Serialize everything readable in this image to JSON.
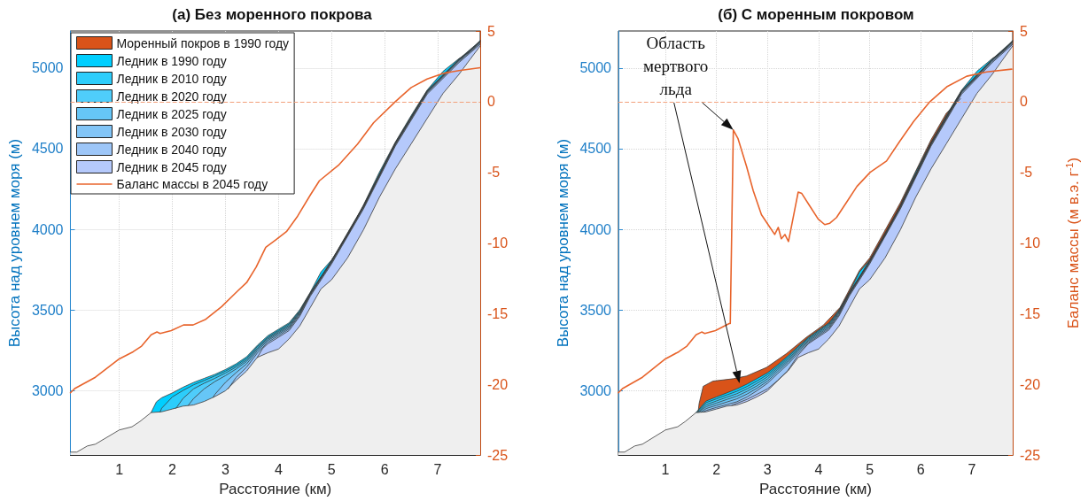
{
  "chart_data": [
    {
      "type": "area",
      "title": "(а) Без моренного покрова",
      "xlabel": "Расстояние (км)",
      "ylabel": "Высота над уровнем моря (м)",
      "xlim": [
        0.08,
        7.8
      ],
      "xticks": [
        1,
        2,
        3,
        4,
        5,
        6,
        7
      ],
      "ylim": [
        2600,
        5230
      ],
      "yticks": [
        3000,
        3500,
        4000,
        4500,
        5000
      ],
      "y2lim": [
        -25,
        5
      ],
      "y2ticks": [
        -25,
        -20,
        -15,
        -10,
        -5,
        0,
        5
      ],
      "grid": true,
      "legend": "top left",
      "ref_lines": [
        {
          "axis": "y2",
          "value": 0,
          "color": "#f2a07b",
          "line_style": "dashed"
        }
      ],
      "series": [
        {
          "name": "Моренный покров в 1990 году",
          "color": "#d95319"
        },
        {
          "name": "Ледник в 1990 году",
          "color": "#00cfff",
          "x": [
            1.6,
            1.7,
            1.8,
            2.0,
            2.2,
            2.4,
            2.6,
            2.8,
            3.0,
            3.2,
            3.4,
            3.6,
            3.8,
            4.0,
            4.2,
            4.4,
            4.6,
            4.8,
            5.0,
            5.3,
            5.6,
            5.9,
            6.2,
            6.5,
            6.8,
            7.1,
            7.4,
            7.6,
            7.8
          ],
          "values": [
            2863,
            2930,
            2955,
            2985,
            3020,
            3050,
            3075,
            3100,
            3130,
            3165,
            3209,
            3280,
            3340,
            3380,
            3420,
            3500,
            3610,
            3735,
            3810,
            3960,
            4150,
            4354,
            4540,
            4706,
            4863,
            4980,
            5059,
            5100,
            5172
          ]
        },
        {
          "name": "Ледник в 2010 году",
          "color": "#2dcdfb",
          "x": [
            1.77,
            1.8,
            2.0,
            2.2,
            2.4,
            2.6,
            2.8,
            3.0,
            3.2,
            3.4,
            3.6,
            3.8,
            4.0,
            4.2,
            4.4,
            4.6,
            5.0,
            5.6,
            6.2,
            6.8,
            7.4,
            7.8
          ],
          "values": [
            2867,
            2890,
            2960,
            3000,
            3035,
            3062,
            3090,
            3120,
            3155,
            3200,
            3272,
            3332,
            3372,
            3413,
            3494,
            3607,
            3807,
            4147,
            4537,
            4860,
            5056,
            5169
          ]
        },
        {
          "name": "Ледник в 2020 году",
          "color": "#4fcdfb",
          "x": [
            2.07,
            2.2,
            2.4,
            2.6,
            2.8,
            3.0,
            3.2,
            3.4,
            3.6,
            3.8,
            4.0,
            4.2,
            4.4,
            4.6,
            5.0,
            5.6,
            6.2,
            6.8,
            7.4,
            7.8
          ],
          "values": [
            2890,
            2950,
            3010,
            3045,
            3075,
            3108,
            3145,
            3190,
            3263,
            3325,
            3365,
            3405,
            3488,
            3604,
            3804,
            4144,
            4534,
            4857,
            5053,
            5166
          ]
        },
        {
          "name": "Ледник в 2025 году",
          "color": "#66c6f7",
          "x": [
            2.3,
            2.4,
            2.6,
            2.8,
            3.0,
            3.2,
            3.4,
            3.6,
            3.8,
            4.0,
            4.2,
            4.4,
            4.6,
            5.0,
            5.6,
            6.2,
            6.8,
            7.4,
            7.8
          ],
          "values": [
            2908,
            2950,
            3010,
            3055,
            3092,
            3133,
            3180,
            3255,
            3318,
            3358,
            3398,
            3482,
            3601,
            3801,
            4141,
            4531,
            4854,
            5050,
            5163
          ]
        },
        {
          "name": "Ледник в 2030 году",
          "color": "#82c5f7",
          "x": [
            2.77,
            2.8,
            3.0,
            3.2,
            3.4,
            3.6,
            3.8,
            4.0,
            4.2,
            4.4,
            4.6,
            5.0,
            5.6,
            6.2,
            6.8,
            7.4,
            7.8
          ],
          "values": [
            2958,
            2975,
            3050,
            3110,
            3165,
            3245,
            3310,
            3350,
            3390,
            3476,
            3598,
            3798,
            4138,
            4528,
            4851,
            5047,
            5160
          ]
        },
        {
          "name": "Ледник в 2040 году",
          "color": "#9dc6f8",
          "x": [
            3.05,
            3.2,
            3.4,
            3.6,
            3.8,
            4.0,
            4.2,
            4.4,
            4.6,
            5.0,
            5.6,
            6.2,
            6.8,
            7.4,
            7.8
          ],
          "values": [
            3010,
            3080,
            3145,
            3232,
            3300,
            3340,
            3382,
            3468,
            3592,
            3792,
            4132,
            4522,
            4845,
            5041,
            5154
          ]
        },
        {
          "name": "Ледник в 2045 году",
          "color": "#b5c9fb",
          "x": [
            3.6,
            3.7,
            3.8,
            4.0,
            4.2,
            4.4,
            4.6,
            5.0,
            5.6,
            6.2,
            6.8,
            7.4,
            7.8
          ],
          "values": [
            3205,
            3260,
            3290,
            3330,
            3372,
            3460,
            3585,
            3785,
            4125,
            4515,
            4838,
            5034,
            5147
          ]
        },
        {
          "color": "#efefef",
          "x": [
            0.08,
            0.2,
            0.4,
            0.55,
            1.0,
            1.24,
            1.39,
            1.6,
            1.8,
            2.0,
            2.2,
            2.4,
            2.6,
            2.8,
            3.0,
            3.2,
            3.4,
            3.6,
            3.8,
            4.0,
            4.2,
            4.4,
            4.6,
            4.8,
            5.0,
            5.3,
            5.6,
            5.9,
            6.2,
            6.5,
            6.8,
            7.1,
            7.4,
            7.6,
            7.8
          ],
          "values": [
            2618,
            2618,
            2656,
            2667,
            2755,
            2775,
            2808,
            2863,
            2868,
            2885,
            2903,
            2910,
            2932,
            2962,
            2998,
            3062,
            3121,
            3205,
            3234,
            3257,
            3320,
            3400,
            3515,
            3630,
            3687,
            3822,
            3996,
            4198,
            4374,
            4530,
            4687,
            4843,
            4961,
            5050,
            5137
          ]
        },
        {
          "name": "Баланс массы в 2045 году",
          "type": "line",
          "axis": "y2",
          "color": "#e8642c",
          "x": [
            0.08,
            0.16,
            0.55,
            1.0,
            1.26,
            1.42,
            1.6,
            1.71,
            1.77,
            1.98,
            2.21,
            2.39,
            2.63,
            2.93,
            3.23,
            3.4,
            3.58,
            3.76,
            3.94,
            4.15,
            4.36,
            4.6,
            4.77,
            5.13,
            5.49,
            5.79,
            6.2,
            6.5,
            6.8,
            7.1,
            7.4,
            7.8
          ],
          "values": [
            -20.6,
            -20.3,
            -19.5,
            -18.2,
            -17.7,
            -17.3,
            -16.5,
            -16.3,
            -16.4,
            -16.2,
            -15.8,
            -15.8,
            -15.4,
            -14.5,
            -13.4,
            -12.8,
            -11.7,
            -10.3,
            -9.8,
            -9.2,
            -8.1,
            -6.6,
            -5.6,
            -4.5,
            -3.0,
            -1.5,
            0.0,
            1.0,
            1.6,
            2.0,
            2.2,
            2.4
          ]
        }
      ]
    },
    {
      "type": "area",
      "title": "(б) С моренным покровом",
      "xlabel": "Расстояние (км)",
      "ylabel": "Высота над уровнем моря (м)",
      "y2label": "Баланс массы (м в.э. г$^{-1}$)",
      "xlim": [
        0.08,
        7.8
      ],
      "xticks": [
        1,
        2,
        3,
        4,
        5,
        6,
        7
      ],
      "ylim": [
        2600,
        5230
      ],
      "yticks": [
        3000,
        3500,
        4000,
        4500,
        5000
      ],
      "y2lim": [
        -25,
        5
      ],
      "y2ticks": [
        -25,
        -20,
        -15,
        -10,
        -5,
        0,
        5
      ],
      "grid": true,
      "annotations": [
        "Область мертвого льда"
      ],
      "ref_lines": [
        {
          "axis": "y2",
          "value": 0,
          "color": "#f2a07b",
          "line_style": "dashed"
        }
      ],
      "series": [
        {
          "color": "#d95319",
          "x": [
            1.64,
            1.66,
            1.74,
            1.93,
            2.33,
            2.59,
            2.98,
            3.37,
            3.76,
            4.09,
            4.42,
            4.8,
            5.0,
            5.6,
            6.2,
            6.5,
            6.78
          ],
          "values": [
            2866,
            2919,
            3026,
            3058,
            3073,
            3090,
            3143,
            3229,
            3330,
            3405,
            3515,
            3745,
            3822,
            4165,
            4555,
            4720,
            4810
          ]
        },
        {
          "color": "#00cfff",
          "x": [
            1.6,
            1.7,
            1.8,
            2.0,
            2.2,
            2.4,
            2.6,
            2.8,
            3.0,
            3.2,
            3.4,
            3.6,
            3.8,
            4.0,
            4.2,
            4.4,
            4.6,
            4.8,
            5.0,
            5.3,
            5.6,
            5.9,
            6.2,
            6.5,
            6.8,
            7.1,
            7.4,
            7.6,
            7.8
          ],
          "values": [
            2863,
            2900,
            2935,
            2960,
            2985,
            3010,
            3040,
            3075,
            3110,
            3160,
            3215,
            3275,
            3330,
            3375,
            3420,
            3500,
            3610,
            3735,
            3810,
            3960,
            4150,
            4354,
            4540,
            4706,
            4863,
            4980,
            5059,
            5100,
            5172
          ]
        },
        {
          "color": "#2dcdfb",
          "x": [
            1.62,
            1.8,
            2.0,
            2.2,
            2.4,
            2.6,
            2.8,
            3.0,
            3.2,
            3.4,
            3.6,
            3.8,
            4.0,
            4.2,
            4.4,
            4.6,
            5.0,
            5.6,
            6.2,
            6.8,
            7.4,
            7.8
          ],
          "values": [
            2865,
            2925,
            2948,
            2972,
            2995,
            3025,
            3060,
            3098,
            3150,
            3205,
            3268,
            3325,
            3370,
            3415,
            3495,
            3607,
            3807,
            4147,
            4537,
            4860,
            5056,
            5169
          ]
        },
        {
          "color": "#4fcdfb",
          "x": [
            1.64,
            1.8,
            2.0,
            2.2,
            2.4,
            2.6,
            2.8,
            3.0,
            3.2,
            3.4,
            3.6,
            3.8,
            4.0,
            4.2,
            4.4,
            4.6,
            5.0,
            5.6,
            6.2,
            6.8,
            7.4,
            7.8
          ],
          "values": [
            2866,
            2912,
            2935,
            2958,
            2980,
            3010,
            3045,
            3085,
            3140,
            3195,
            3260,
            3318,
            3363,
            3408,
            3490,
            3604,
            3804,
            4144,
            4534,
            4857,
            5053,
            5166
          ]
        },
        {
          "color": "#66c6f7",
          "x": [
            1.66,
            1.8,
            2.0,
            2.2,
            2.4,
            2.6,
            2.8,
            3.0,
            3.2,
            3.4,
            3.6,
            3.8,
            4.0,
            4.2,
            4.4,
            4.6,
            5.0,
            5.6,
            6.2,
            6.8,
            7.4,
            7.8
          ],
          "values": [
            2866,
            2900,
            2922,
            2944,
            2965,
            2995,
            3030,
            3072,
            3130,
            3185,
            3252,
            3311,
            3356,
            3400,
            3484,
            3601,
            3801,
            4141,
            4531,
            4854,
            5050,
            5163
          ]
        },
        {
          "color": "#82c5f7",
          "x": [
            1.7,
            1.8,
            2.0,
            2.2,
            2.4,
            2.6,
            2.8,
            3.0,
            3.2,
            3.4,
            3.6,
            3.8,
            4.0,
            4.2,
            4.4,
            4.6,
            5.0,
            5.6,
            6.2,
            6.8,
            7.4,
            7.8
          ],
          "values": [
            2866,
            2888,
            2908,
            2928,
            2948,
            2978,
            3015,
            3058,
            3118,
            3175,
            3244,
            3304,
            3348,
            3392,
            3478,
            3598,
            3798,
            4138,
            4528,
            4851,
            5047,
            5160
          ]
        },
        {
          "color": "#9dc6f8",
          "x": [
            1.75,
            1.8,
            2.0,
            2.2,
            2.4,
            2.6,
            2.8,
            3.0,
            3.2,
            3.4,
            3.6,
            3.8,
            4.0,
            4.2,
            4.4,
            4.6,
            5.0,
            5.6,
            6.2,
            6.8,
            7.4,
            7.8
          ],
          "values": [
            2867,
            2876,
            2895,
            2912,
            2930,
            2960,
            3000,
            3045,
            3105,
            3163,
            3232,
            3296,
            3340,
            3384,
            3470,
            3592,
            3792,
            4132,
            4522,
            4845,
            5041,
            5154
          ]
        },
        {
          "color": "#b5c9fb",
          "x": [
            2.3,
            2.6,
            3.0,
            3.2,
            3.4,
            3.6,
            3.8,
            4.0,
            4.2,
            4.4,
            4.6,
            5.0,
            5.6,
            6.2,
            6.8,
            7.4,
            7.8
          ],
          "values": [
            2908,
            2945,
            3010,
            3062,
            3125,
            3220,
            3290,
            3332,
            3375,
            3462,
            3585,
            3785,
            4125,
            4515,
            4838,
            5034,
            5147
          ]
        },
        {
          "color": "#efefef",
          "x": [
            0.08,
            0.2,
            0.4,
            0.55,
            1.0,
            1.24,
            1.39,
            1.6,
            1.8,
            2.0,
            2.2,
            2.4,
            2.6,
            2.8,
            3.0,
            3.2,
            3.4,
            3.6,
            3.8,
            4.0,
            4.2,
            4.4,
            4.6,
            4.8,
            5.0,
            5.3,
            5.6,
            5.9,
            6.2,
            6.5,
            6.8,
            7.1,
            7.4,
            7.6,
            7.8
          ],
          "values": [
            2618,
            2618,
            2656,
            2667,
            2755,
            2775,
            2808,
            2863,
            2868,
            2885,
            2903,
            2910,
            2932,
            2962,
            2998,
            3062,
            3121,
            3205,
            3234,
            3257,
            3320,
            3400,
            3515,
            3630,
            3687,
            3822,
            3996,
            4198,
            4374,
            4530,
            4687,
            4843,
            4961,
            5050,
            5137
          ]
        },
        {
          "type": "line",
          "axis": "y2",
          "color": "#e8642c",
          "x": [
            0.08,
            0.16,
            0.55,
            1.0,
            1.26,
            1.42,
            1.6,
            1.71,
            1.77,
            1.98,
            2.25,
            2.27,
            2.33,
            2.42,
            2.59,
            2.72,
            2.88,
            3.01,
            3.14,
            3.21,
            3.27,
            3.34,
            3.41,
            3.54,
            3.6,
            3.67,
            3.83,
            3.99,
            4.12,
            4.22,
            4.35,
            4.55,
            4.75,
            5.01,
            5.33,
            5.59,
            5.86,
            6.18,
            6.51,
            6.9,
            7.29,
            7.78
          ],
          "values": [
            -20.6,
            -20.3,
            -19.5,
            -18.2,
            -17.7,
            -17.3,
            -16.5,
            -16.3,
            -16.4,
            -16.2,
            -15.7,
            -15.7,
            -2.0,
            -2.6,
            -4.6,
            -6.3,
            -8.0,
            -8.7,
            -9.4,
            -8.9,
            -9.7,
            -9.4,
            -9.9,
            -7.5,
            -6.4,
            -6.5,
            -7.4,
            -8.3,
            -8.7,
            -8.6,
            -8.2,
            -7.1,
            -6.0,
            -5.0,
            -4.2,
            -2.8,
            -1.4,
            0.0,
            1.05,
            1.8,
            2.1,
            2.3
          ]
        }
      ]
    }
  ]
}
